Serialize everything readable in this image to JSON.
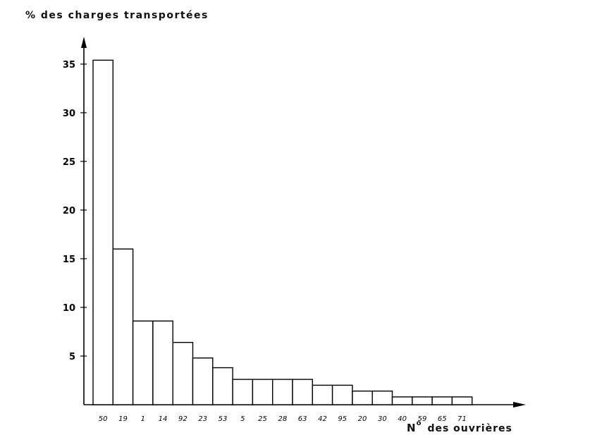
{
  "chart_data": {
    "type": "bar",
    "title": "",
    "ylabel": "% des charges transportées",
    "xlabel": {
      "prefix": "N",
      "sup": "o",
      "rest": "des ouvrières"
    },
    "ylim": [
      0,
      38
    ],
    "yticks": [
      5,
      10,
      15,
      20,
      25,
      30,
      35
    ],
    "grid": false,
    "bar_fill": "#ffffff",
    "bar_stroke": "#000000",
    "categories": [
      "50",
      "19",
      "1",
      "14",
      "92",
      "23",
      "53",
      "5",
      "25",
      "28",
      "63",
      "42",
      "95",
      "20",
      "30",
      "40",
      "59",
      "65",
      "71"
    ],
    "values": [
      35.4,
      16.0,
      8.6,
      8.6,
      6.4,
      4.8,
      3.8,
      2.6,
      2.6,
      2.6,
      2.6,
      2.0,
      2.0,
      1.4,
      1.4,
      0.8,
      0.8,
      0.8,
      0.8
    ]
  }
}
